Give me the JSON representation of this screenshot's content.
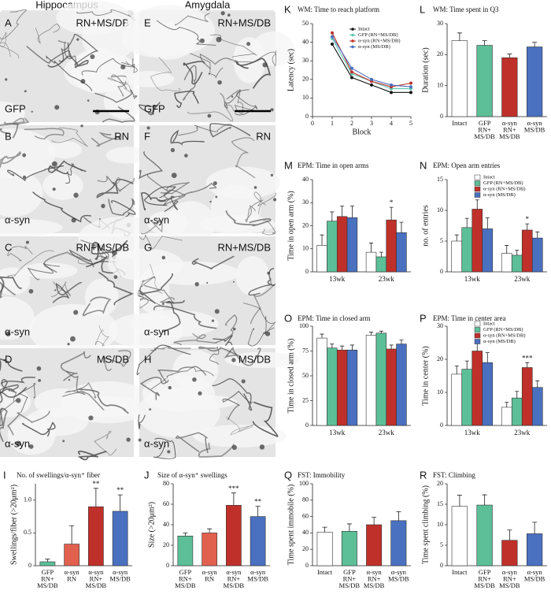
{
  "panels": {
    "headers": [
      "Hippocampus",
      "Amygdala"
    ],
    "items": [
      {
        "letter": "A",
        "region": "RN+MS/DB",
        "stain": "GFP"
      },
      {
        "letter": "B",
        "region": "RN",
        "stain": "α-syn"
      },
      {
        "letter": "C",
        "region": "RN+MS/DB",
        "stain": "α-syn"
      },
      {
        "letter": "D",
        "region": "MS/DB",
        "stain": "α-syn"
      },
      {
        "letter": "E",
        "region": "RN+MS/DB",
        "stain": "GFP"
      },
      {
        "letter": "F",
        "region": "RN",
        "stain": "α-syn"
      },
      {
        "letter": "G",
        "region": "RN+MS/DB",
        "stain": "α-syn"
      },
      {
        "letter": "H",
        "region": "MS/DB",
        "stain": "α-syn"
      }
    ]
  },
  "chart_data": [
    {
      "type": "bar",
      "label": "I",
      "title": "No. of swellings/α-syn⁺ fiber",
      "ylabel": "Swellings/fiber (>20μm²)",
      "categories": [
        "GFP RN+ MS/DB",
        "α-syn RN",
        "α-syn RN+ MS/DB",
        "α-syn MS/DB"
      ],
      "values": [
        0.06,
        0.33,
        0.9,
        0.83
      ],
      "errors": [
        0.04,
        0.28,
        0.28,
        0.25
      ],
      "colors": [
        "#5cbf98",
        "#e2604e",
        "#c0302a",
        "#4a70c0"
      ],
      "annotations": [
        null,
        null,
        "**",
        "**"
      ],
      "ylim": [
        0,
        1.25
      ],
      "yticks": [
        0,
        0.5,
        {
          "value": 1,
          "label": "1.0"
        }
      ]
    },
    {
      "type": "bar",
      "label": "J",
      "title": "Size of α-syn⁺ swellings",
      "ylabel": "Size (>20μm²)",
      "categories": [
        "GFP RN+ MS/DB",
        "α-syn RN",
        "α-syn RN+ MS/DB",
        "α-syn MS/DB"
      ],
      "values": [
        29,
        32,
        59,
        48
      ],
      "errors": [
        3,
        4,
        12,
        10
      ],
      "colors": [
        "#5cbf98",
        "#e2604e",
        "#c0302a",
        "#4a70c0"
      ],
      "annotations": [
        null,
        null,
        "***",
        "**"
      ],
      "ylim": [
        0,
        80
      ],
      "yticks": [
        0,
        20,
        40,
        60,
        80
      ]
    },
    {
      "type": "line",
      "label": "K",
      "title": "WM: Time to reach platform",
      "xlabel": "Block",
      "ylabel": "Latency (sec)",
      "x": [
        1,
        2,
        3,
        4,
        5
      ],
      "xlim": [
        0,
        5
      ],
      "xticks": [
        0,
        1,
        2,
        3,
        4,
        5
      ],
      "ylim": [
        0,
        50
      ],
      "yticks": [
        0,
        10,
        20,
        30,
        40,
        50
      ],
      "legend": "upper right",
      "series": [
        {
          "name": "Intact",
          "color": "#111111",
          "values": [
            39,
            21,
            17,
            13,
            13
          ]
        },
        {
          "name": "GFP (RN+MS/DB)",
          "color": "#5cc8b0",
          "values": [
            42,
            23,
            19,
            15,
            15
          ]
        },
        {
          "name": "α-syn (RN+MS/DB)",
          "color": "#c0302a",
          "values": [
            45,
            24,
            19,
            16,
            18
          ]
        },
        {
          "name": "α-syn (MS/DB)",
          "color": "#4a70c0",
          "values": [
            43,
            26,
            20,
            17,
            16
          ]
        }
      ]
    },
    {
      "type": "bar",
      "label": "L",
      "title": "WM: Time spent in Q3",
      "ylabel": "Duration (sec)",
      "categories": [
        "Intact",
        "GFP RN+ MS/DB",
        "α-syn RN+ MS/DB",
        "α-syn MS/DB"
      ],
      "values": [
        24.5,
        23,
        19,
        22.5
      ],
      "errors": [
        2.5,
        1.5,
        1.2,
        1.5
      ],
      "colors": [
        "#ffffff",
        "#5cbf98",
        "#c0302a",
        "#4a70c0"
      ],
      "ylim": [
        0,
        30
      ],
      "yticks": [
        0,
        10,
        20,
        30
      ]
    },
    {
      "type": "bar",
      "label": "M",
      "title": "EPM: Time in open arms",
      "ylabel": "Time in open arm (%)",
      "categories": [
        "13wk",
        "23wk"
      ],
      "ylim": [
        0,
        40
      ],
      "yticks": [
        0,
        10,
        20,
        30,
        40
      ],
      "series": [
        {
          "color": "#ffffff",
          "values": [
            11.5,
            8.5
          ],
          "errors": [
            4.5,
            4
          ]
        },
        {
          "color": "#5cbf98",
          "values": [
            22,
            6.5
          ],
          "errors": [
            4,
            2
          ]
        },
        {
          "color": "#c0302a",
          "values": [
            24,
            22.5
          ],
          "errors": [
            4.5,
            5.5
          ],
          "annotations": [
            null,
            "*"
          ]
        },
        {
          "color": "#4a70c0",
          "values": [
            23.5,
            17
          ],
          "errors": [
            5,
            4.5
          ]
        }
      ]
    },
    {
      "type": "bar",
      "label": "N",
      "title": "EPM: Open arm entries",
      "ylabel": "no. of entries",
      "categories": [
        "13wk",
        "23wk"
      ],
      "ylim": [
        0,
        15
      ],
      "yticks": [
        0,
        5,
        10,
        15
      ],
      "legend": "upper right",
      "series": [
        {
          "name": "Intact",
          "color": "#ffffff",
          "values": [
            5,
            3
          ],
          "errors": [
            1,
            1.3
          ]
        },
        {
          "name": "GFP (RN+MS/DB)",
          "color": "#5cbf98",
          "values": [
            7.2,
            2.7
          ],
          "errors": [
            1.5,
            0.8
          ]
        },
        {
          "name": "α-syn (RN+MS/DB)",
          "color": "#c0302a",
          "values": [
            10.2,
            6.8
          ],
          "errors": [
            1.5,
            1
          ],
          "annotations": [
            null,
            "*"
          ]
        },
        {
          "name": "α-syn (MS/DB)",
          "color": "#4a70c0",
          "values": [
            7,
            5.5
          ],
          "errors": [
            1.8,
            1
          ]
        }
      ]
    },
    {
      "type": "bar",
      "label": "O",
      "title": "EPM: Time in closed arm",
      "ylabel": "Time in closed arm (%)",
      "categories": [
        "13wk",
        "23wk"
      ],
      "ylim": [
        0,
        100
      ],
      "yticks": [
        0,
        25,
        50,
        75,
        100
      ],
      "series": [
        {
          "color": "#ffffff",
          "values": [
            88,
            91
          ],
          "errors": [
            4,
            3
          ]
        },
        {
          "color": "#5cbf98",
          "values": [
            78,
            93
          ],
          "errors": [
            4,
            2
          ]
        },
        {
          "color": "#c0302a",
          "values": [
            76,
            77
          ],
          "errors": [
            4,
            4
          ]
        },
        {
          "color": "#4a70c0",
          "values": [
            76,
            82
          ],
          "errors": [
            5,
            4
          ]
        }
      ]
    },
    {
      "type": "bar",
      "label": "P",
      "title": "EPM: Time in center area",
      "ylabel": "Time in center (%)",
      "categories": [
        "13wk",
        "23wk"
      ],
      "ylim": [
        0,
        30
      ],
      "yticks": [
        0,
        10,
        20,
        30
      ],
      "legend": "upper right",
      "series": [
        {
          "name": "Intact",
          "color": "#ffffff",
          "values": [
            15.5,
            5.5
          ],
          "errors": [
            2.5,
            1.5
          ]
        },
        {
          "name": "GFP (RN+MS/DB)",
          "color": "#5cbf98",
          "values": [
            17,
            8.3
          ],
          "errors": [
            2.5,
            2
          ]
        },
        {
          "name": "α-syn (RN+MS/DB)",
          "color": "#c0302a",
          "values": [
            22.5,
            17.5
          ],
          "errors": [
            3,
            1.5
          ],
          "annotations": [
            null,
            "***"
          ]
        },
        {
          "name": "α-syn (MS/DB)",
          "color": "#4a70c0",
          "values": [
            19,
            11.5
          ],
          "errors": [
            3,
            2
          ]
        }
      ]
    },
    {
      "type": "bar",
      "label": "Q",
      "title": "FST: Immobility",
      "ylabel": "Time spent immobile (%)",
      "categories": [
        "Intact",
        "GFP RN+ MS/DB",
        "α-syn RN+ MS/DB",
        "α-syn MS/DB"
      ],
      "values": [
        41,
        42,
        50,
        55
      ],
      "errors": [
        6,
        9,
        9,
        11
      ],
      "colors": [
        "#ffffff",
        "#5cbf98",
        "#c0302a",
        "#4a70c0"
      ],
      "ylim": [
        0,
        100
      ],
      "yticks": [
        0,
        20,
        40,
        60,
        80,
        100
      ]
    },
    {
      "type": "bar",
      "label": "R",
      "title": "FST: Climbing",
      "ylabel": "Time spent climbing (%)",
      "categories": [
        "Intact",
        "GFP RN+ MS/DB",
        "α-syn RN+ MS/DB",
        "α-syn MS/DB"
      ],
      "values": [
        14.5,
        14.8,
        6.2,
        7.8
      ],
      "errors": [
        2.7,
        2.5,
        2.5,
        2.8
      ],
      "colors": [
        "#ffffff",
        "#5cbf98",
        "#c0302a",
        "#4a70c0"
      ],
      "ylim": [
        0,
        20
      ],
      "yticks": [
        0,
        5,
        10,
        15,
        20
      ]
    }
  ]
}
